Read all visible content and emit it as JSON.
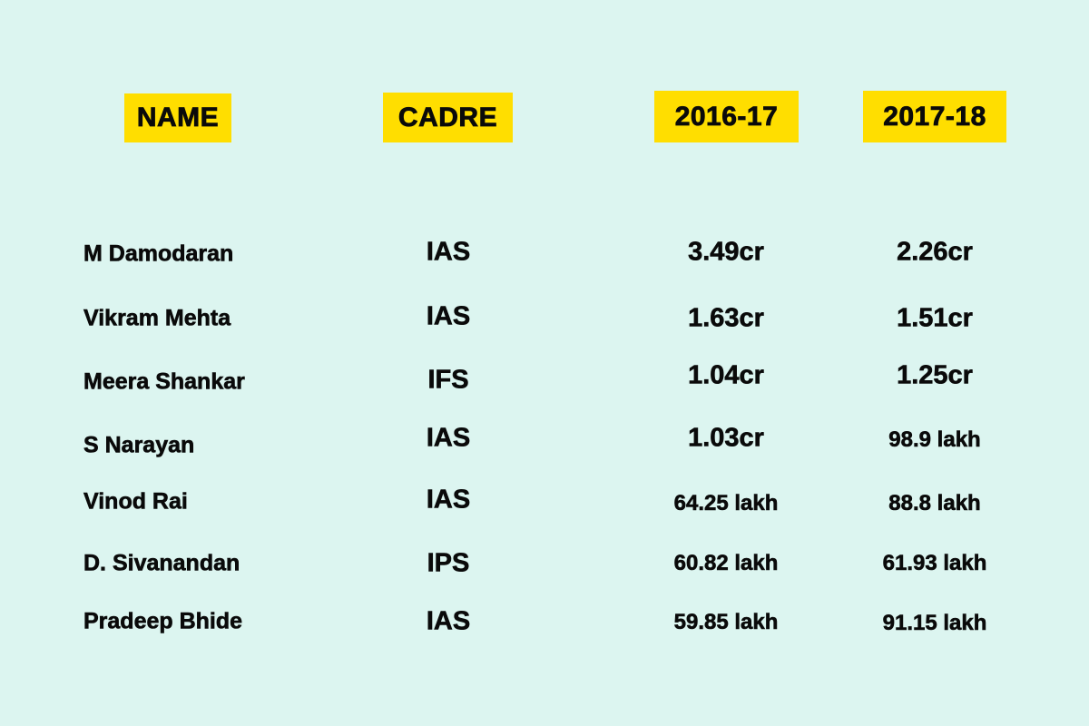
{
  "colors": {
    "background": "#dcf5f0",
    "header_highlight": "#ffde00",
    "text": "#0a0a0a"
  },
  "headers": {
    "name": "NAME",
    "cadre": "CADRE",
    "year1": "2016-17",
    "year2": "2017-18"
  },
  "rows": [
    {
      "name": "M Damodaran",
      "cadre": "IAS",
      "y2016_17": "3.49cr",
      "y2017_18": "2.26cr"
    },
    {
      "name": "Vikram Mehta",
      "cadre": "IAS",
      "y2016_17": "1.63cr",
      "y2017_18": "1.51cr"
    },
    {
      "name": "Meera Shankar",
      "cadre": "IFS",
      "y2016_17": "1.04cr",
      "y2017_18": "1.25cr"
    },
    {
      "name": "S Narayan",
      "cadre": "IAS",
      "y2016_17": "1.03cr",
      "y2017_18": "98.9 lakh"
    },
    {
      "name": "Vinod Rai",
      "cadre": "IAS",
      "y2016_17": "64.25 lakh",
      "y2017_18": "88.8 lakh"
    },
    {
      "name": "D. Sivanandan",
      "cadre": "IPS",
      "y2016_17": "60.82 lakh",
      "y2017_18": "61.93 lakh"
    },
    {
      "name": "Pradeep Bhide",
      "cadre": "IAS",
      "y2016_17": "59.85 lakh",
      "y2017_18": "91.15 lakh"
    }
  ]
}
